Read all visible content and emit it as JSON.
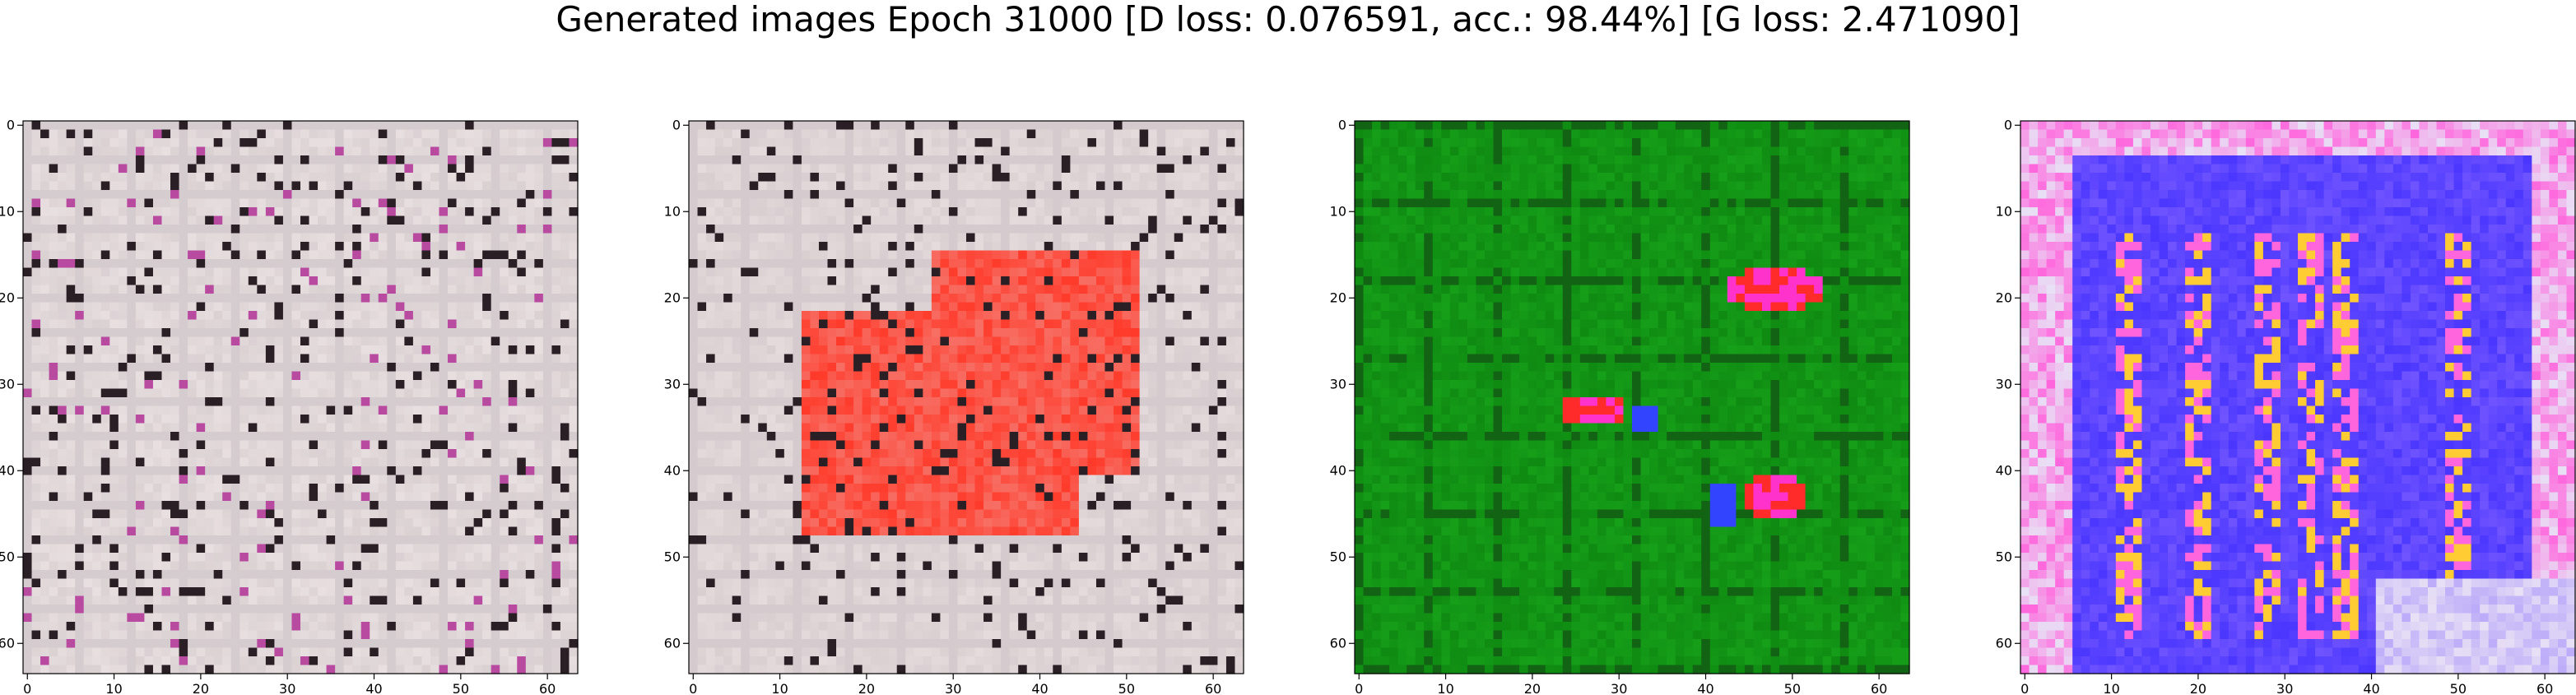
{
  "title": "Generated images Epoch 31000 [D loss: 0.076591, acc.: 98.44%] [G loss: 2.471090]",
  "chart_data": [
    {
      "type": "heatmap",
      "description_key": "generated_image_1",
      "dominant_colors": [
        "#e8dfe0",
        "#c9bfc3",
        "#2a1f24",
        "#b84aa0"
      ],
      "x_ticks": [
        0,
        10,
        20,
        30,
        40,
        50,
        60
      ],
      "y_ticks": [
        0,
        10,
        20,
        30,
        40,
        50,
        60
      ],
      "xlim": [
        -0.5,
        63.5
      ],
      "ylim": [
        63.5,
        -0.5
      ]
    },
    {
      "type": "heatmap",
      "description_key": "generated_image_2",
      "dominant_colors": [
        "#e6dbdc",
        "#ff3a2a",
        "#2a1f24",
        "#c9bfc3"
      ],
      "x_ticks": [
        0,
        10,
        20,
        30,
        40,
        50,
        60
      ],
      "y_ticks": [
        0,
        10,
        20,
        30,
        40,
        50,
        60
      ],
      "xlim": [
        -0.5,
        63.5
      ],
      "ylim": [
        63.5,
        -0.5
      ]
    },
    {
      "type": "heatmap",
      "description_key": "generated_image_3",
      "dominant_colors": [
        "#0f8a12",
        "#19a81c",
        "#ff2a2a",
        "#ff33cc",
        "#3344ff"
      ],
      "x_ticks": [
        0,
        10,
        20,
        30,
        40,
        50,
        60
      ],
      "y_ticks": [
        0,
        10,
        20,
        30,
        40,
        50,
        60
      ],
      "xlim": [
        -0.5,
        63.5
      ],
      "ylim": [
        63.5,
        -0.5
      ]
    },
    {
      "type": "heatmap",
      "description_key": "generated_image_4",
      "dominant_colors": [
        "#4a36ff",
        "#7a5cff",
        "#ff66dd",
        "#ffcc33",
        "#e8e0f5"
      ],
      "x_ticks": [
        0,
        10,
        20,
        30,
        40,
        50,
        60
      ],
      "y_ticks": [
        0,
        10,
        20,
        30,
        40,
        50,
        60
      ],
      "xlim": [
        -0.5,
        63.5
      ],
      "ylim": [
        63.5,
        -0.5
      ]
    }
  ]
}
